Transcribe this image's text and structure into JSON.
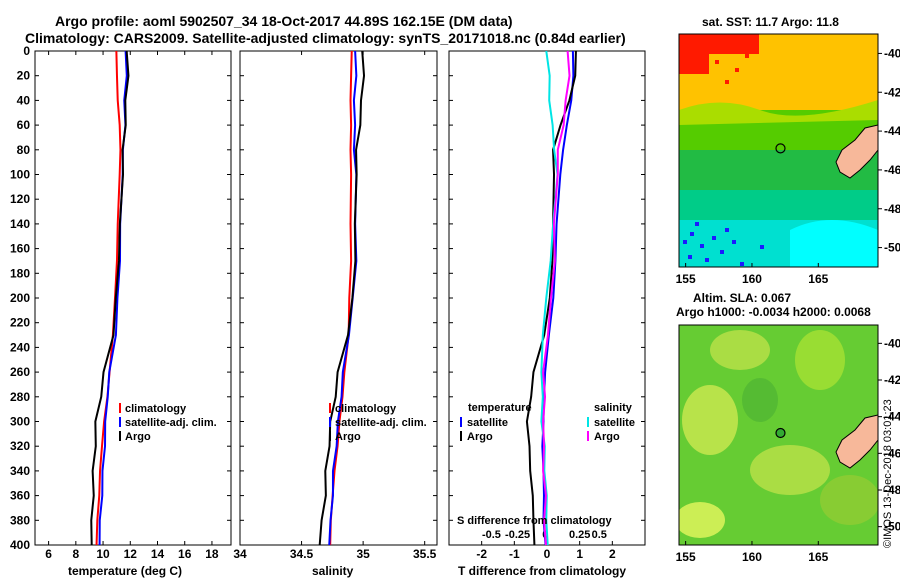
{
  "header": {
    "line1": "Argo profile: aoml 5902507_34 18-Oct-2017 44.89S 162.15E (DM data)",
    "line2": "Climatology: CARS2009. Satellite-adjusted climatology: synTS_20171018.nc (0.84d earlier)"
  },
  "watermark": "©IMOS 13-Dec-2018 03:01:23",
  "colors": {
    "climatology": "#ff0000",
    "satellite": "#0000ff",
    "argo": "#000000",
    "sat_salinity": "#00e5e5",
    "argo_salinity": "#ff00ff",
    "land": "#f7b89a"
  },
  "chart_data": [
    {
      "type": "line",
      "name": "temperature-profile",
      "xlabel": "temperature (deg C)",
      "ylabel": "depth",
      "xlim": [
        5,
        19.4
      ],
      "ylim": [
        400,
        0
      ],
      "xticks": [
        "6",
        "8",
        "10",
        "12",
        "14",
        "16",
        "18"
      ],
      "yticks": [
        "0",
        "20",
        "40",
        "60",
        "80",
        "100",
        "120",
        "140",
        "160",
        "180",
        "200",
        "220",
        "240",
        "260",
        "280",
        "300",
        "320",
        "340",
        "360",
        "380",
        "400"
      ],
      "legend": [
        "climatology",
        "satellite-adj. clim.",
        "Argo"
      ],
      "depth": [
        0,
        20,
        40,
        60,
        80,
        100,
        140,
        170,
        200,
        230,
        260,
        280,
        300,
        320,
        340,
        360,
        380,
        400
      ],
      "series": [
        {
          "name": "climatology",
          "color": "#ff0000",
          "values": [
            11.0,
            11.0,
            11.1,
            11.2,
            11.3,
            11.2,
            11.1,
            11.0,
            10.9,
            10.7,
            10.5,
            10.3,
            10.1,
            9.9,
            9.8,
            9.7,
            9.6,
            9.5
          ]
        },
        {
          "name": "satellite-adj. clim.",
          "color": "#0000ff",
          "values": [
            11.7,
            11.7,
            11.6,
            11.6,
            11.5,
            11.4,
            11.3,
            11.2,
            11.1,
            10.9,
            10.5,
            10.3,
            10.2,
            10.1,
            10.0,
            9.9,
            9.8,
            9.7
          ]
        },
        {
          "name": "Argo",
          "color": "#000000",
          "values": [
            11.8,
            11.8,
            11.7,
            11.6,
            11.5,
            11.4,
            11.3,
            11.1,
            11.0,
            10.7,
            10.1,
            9.8,
            9.5,
            9.4,
            9.3,
            9.25,
            9.2,
            9.1
          ]
        }
      ]
    },
    {
      "type": "line",
      "name": "salinity-profile",
      "xlabel": "salinity",
      "xlim": [
        34,
        35.6
      ],
      "ylim": [
        400,
        0
      ],
      "xticks": [
        "34",
        "34.5",
        "35",
        "35.5"
      ],
      "legend": [
        "climatology",
        "satellite-adj. clim.",
        "Argo"
      ],
      "depth": [
        0,
        20,
        40,
        60,
        80,
        100,
        140,
        170,
        200,
        230,
        260,
        280,
        300,
        320,
        340,
        360,
        380,
        400
      ],
      "series": [
        {
          "name": "climatology",
          "color": "#ff0000",
          "values": [
            34.91,
            34.9,
            34.9,
            34.9,
            34.9,
            34.9,
            34.9,
            34.9,
            34.89,
            34.88,
            34.85,
            34.83,
            34.81,
            34.79,
            34.77,
            34.75,
            34.74,
            34.73
          ]
        },
        {
          "name": "satellite-adj. clim.",
          "color": "#0000ff",
          "values": [
            34.94,
            34.94,
            34.93,
            34.93,
            34.93,
            34.94,
            34.94,
            34.94,
            34.92,
            34.88,
            34.84,
            34.82,
            34.8,
            34.78,
            34.76,
            34.75,
            34.74,
            34.72
          ]
        },
        {
          "name": "Argo",
          "color": "#000000",
          "values": [
            35.0,
            35.0,
            34.99,
            34.97,
            34.95,
            34.94,
            34.94,
            34.93,
            34.92,
            34.87,
            34.8,
            34.77,
            34.74,
            34.72,
            34.7,
            34.69,
            34.67,
            34.64
          ]
        }
      ]
    },
    {
      "type": "line",
      "name": "difference-profile",
      "xlabel": "T difference from climatology",
      "xlabel_top": "S difference from climatology",
      "xlim": [
        -3,
        3
      ],
      "ylim": [
        400,
        0
      ],
      "xticks": [
        "-2",
        "-1",
        "0",
        "1",
        "2"
      ],
      "xticks_s": [
        "-0.5",
        "-0.25",
        "0",
        "0.25",
        "0.5"
      ],
      "legend_temperature_title": "temperature",
      "legend_salinity_title": "salinity",
      "legend": [
        "satellite",
        "Argo",
        "satellite",
        "Argo"
      ],
      "depth": [
        0,
        20,
        40,
        60,
        80,
        100,
        140,
        170,
        200,
        230,
        260,
        280,
        300,
        320,
        340,
        360,
        380,
        400
      ],
      "series": [
        {
          "name": "temperature satellite",
          "color": "#0000ff",
          "values": [
            0.8,
            0.8,
            0.75,
            0.6,
            0.5,
            0.4,
            0.3,
            0.25,
            0.2,
            0.05,
            -0.05,
            -0.1,
            -0.1,
            -0.15,
            -0.1,
            -0.1,
            -0.1,
            -0.05
          ]
        },
        {
          "name": "temperature Argo",
          "color": "#000000",
          "values": [
            0.9,
            0.85,
            0.7,
            0.4,
            0.2,
            0.2,
            0.2,
            0.15,
            0.1,
            -0.1,
            -0.4,
            -0.5,
            -0.6,
            -0.55,
            -0.5,
            -0.45,
            -0.4,
            -0.4
          ]
        },
        {
          "name": "salinity satellite",
          "color": "#00e5e5",
          "values": [
            0.0,
            0.02,
            0.03,
            0.05,
            0.08,
            0.1,
            0.07,
            0.03,
            0.0,
            -0.05,
            -0.05,
            -0.05,
            -0.05,
            -0.03,
            -0.02,
            -0.01,
            0.0,
            0.0
          ]
        },
        {
          "name": "salinity Argo",
          "color": "#ff00ff",
          "values": [
            0.22,
            0.22,
            0.2,
            0.16,
            0.12,
            0.1,
            0.08,
            0.07,
            0.05,
            0.0,
            -0.03,
            -0.03,
            -0.03,
            -0.04,
            -0.03,
            -0.02,
            -0.02,
            -0.02
          ]
        }
      ]
    },
    {
      "type": "heatmap",
      "name": "sst-map",
      "title": "sat. SST: 11.7 Argo: 11.8",
      "xticks": [
        "155",
        "160",
        "165"
      ],
      "yticks": [
        "-40",
        "-42",
        "-44",
        "-46",
        "-48",
        "-50"
      ],
      "xlim": [
        154.5,
        169.5
      ],
      "ylim": [
        -51,
        -39
      ],
      "argo_position": {
        "lon": 162.15,
        "lat": -44.89
      }
    },
    {
      "type": "heatmap",
      "name": "sla-map",
      "title": "Altim. SLA: 0.067",
      "subtitle": "Argo h1000: -0.0034 h2000: 0.0068",
      "xticks": [
        "155",
        "160",
        "165"
      ],
      "yticks": [
        "-40",
        "-42",
        "-44",
        "-46",
        "-48",
        "-50"
      ],
      "xlim": [
        154.5,
        169.5
      ],
      "ylim": [
        -51,
        -39
      ],
      "argo_position": {
        "lon": 162.15,
        "lat": -44.89
      }
    }
  ]
}
